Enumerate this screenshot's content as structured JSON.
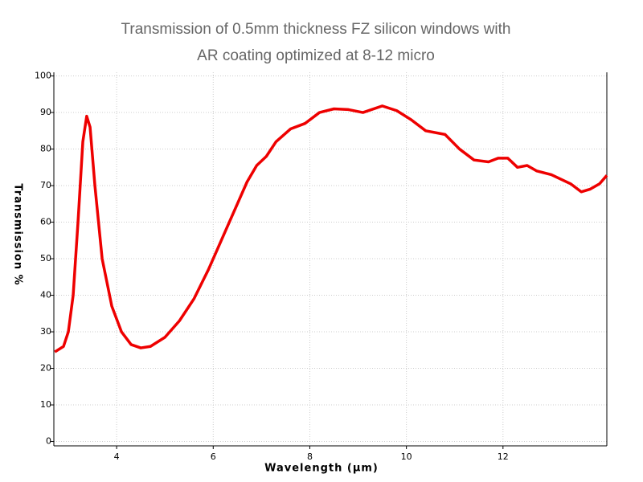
{
  "chart_data": {
    "type": "line",
    "title": "Transmission of 0.5mm thickness FZ silicon windows with",
    "subtitle": "AR coating optimized at 8-12 micro",
    "x_label": "Wavelength (μm)",
    "y_label": "Transmission %",
    "xlim": [
      2.7,
      14.15
    ],
    "ylim": [
      -1.2,
      101
    ],
    "xticks": [
      4,
      6,
      8,
      10,
      12
    ],
    "yticks": [
      0,
      10,
      20,
      30,
      40,
      50,
      60,
      70,
      80,
      90,
      100
    ],
    "grid": true,
    "series": [
      {
        "name": "Transmission",
        "color": "#ee0000",
        "x": [
          2.72,
          2.9,
          3.0,
          3.1,
          3.2,
          3.3,
          3.38,
          3.45,
          3.55,
          3.7,
          3.9,
          4.1,
          4.3,
          4.5,
          4.7,
          5.0,
          5.3,
          5.6,
          5.9,
          6.1,
          6.3,
          6.5,
          6.7,
          6.9,
          7.1,
          7.3,
          7.6,
          7.9,
          8.2,
          8.5,
          8.8,
          9.1,
          9.5,
          9.8,
          10.1,
          10.4,
          10.8,
          11.1,
          11.4,
          11.7,
          11.9,
          12.1,
          12.3,
          12.5,
          12.7,
          13.0,
          13.4,
          13.62,
          13.8,
          14.0,
          14.15
        ],
        "values": [
          24.5,
          26,
          30,
          40,
          60,
          82,
          89,
          86,
          70,
          50,
          37,
          30,
          26.5,
          25.6,
          26,
          28.5,
          33,
          39,
          47,
          53,
          59,
          65,
          71,
          75.5,
          78,
          82,
          85.5,
          87,
          90,
          91,
          90.8,
          90,
          91.8,
          90.5,
          88,
          85,
          84,
          80,
          77,
          76.5,
          77.5,
          77.5,
          75,
          75.5,
          74,
          73,
          70.5,
          68.3,
          69,
          70.5,
          72.8
        ]
      }
    ]
  }
}
